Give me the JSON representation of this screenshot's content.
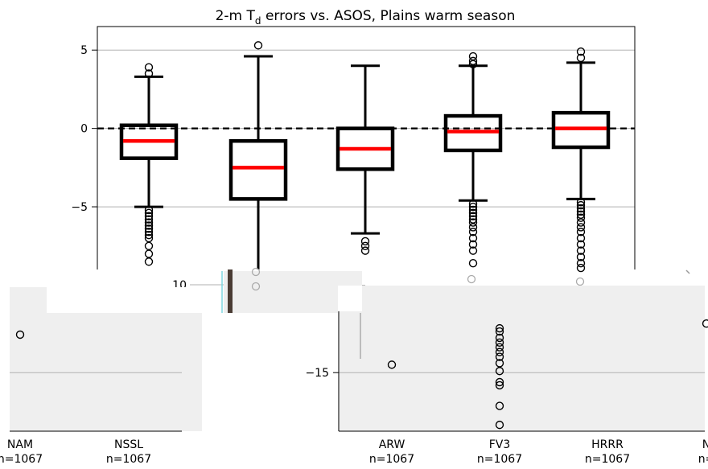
{
  "chart_data": [
    {
      "type": "box",
      "title_main": "2-m T",
      "title_sub": "d",
      "title_rest": " errors vs. ASOS, Plains warm season",
      "xlabel": "",
      "ylabel": "",
      "ylim": [
        -9,
        6.5
      ],
      "y_ticks": [
        {
          "value": 5,
          "label": "5"
        },
        {
          "value": 0,
          "label": "0"
        },
        {
          "value": -5,
          "label": "−5"
        }
      ],
      "reference_line": 0,
      "grid": "horizontal",
      "boxes": [
        {
          "whisker_low": -5.0,
          "q1": -1.9,
          "median": -0.8,
          "q3": 0.2,
          "whisker_high": 3.3,
          "outliers_high": [
            3.9,
            3.5
          ],
          "outliers_low": [
            -5.2,
            -5.4,
            -5.6,
            -5.8,
            -6.0,
            -6.2,
            -6.4,
            -6.6,
            -6.8,
            -7.0,
            -7.5,
            -8.0,
            -8.5
          ]
        },
        {
          "whisker_low": -9.0,
          "q1": -4.5,
          "median": -2.5,
          "q3": -0.8,
          "whisker_high": 4.6,
          "outliers_high": [
            5.3
          ],
          "outliers_low": []
        },
        {
          "whisker_low": -6.7,
          "q1": -2.6,
          "median": -1.3,
          "q3": 0.0,
          "whisker_high": 4.0,
          "outliers_high": [],
          "outliers_low": [
            -7.2,
            -7.5,
            -7.8
          ]
        },
        {
          "whisker_low": -4.6,
          "q1": -1.4,
          "median": -0.2,
          "q3": 0.8,
          "whisker_high": 4.0,
          "outliers_high": [
            4.6,
            4.3,
            4.1
          ],
          "outliers_low": [
            -4.8,
            -5.0,
            -5.2,
            -5.4,
            -5.6,
            -5.8,
            -6.0,
            -6.3,
            -6.6,
            -7.0,
            -7.4,
            -7.8,
            -8.6
          ]
        },
        {
          "whisker_low": -4.5,
          "q1": -1.2,
          "median": 0.0,
          "q3": 1.0,
          "whisker_high": 4.2,
          "outliers_high": [
            4.9,
            4.5
          ],
          "outliers_low": [
            -4.7,
            -4.9,
            -5.1,
            -5.3,
            -5.5,
            -5.7,
            -6.0,
            -6.3,
            -6.6,
            -7.0,
            -7.4,
            -7.8,
            -8.2,
            -8.6,
            -8.9
          ]
        }
      ]
    },
    {
      "type": "box",
      "ylim": [
        -18.7,
        -9.5
      ],
      "y_ticks": [
        {
          "value": -15,
          "label": "−15"
        }
      ],
      "categories": [
        "NAM",
        "NSSL",
        "ARW",
        "FV3",
        "HRRR",
        "N"
      ],
      "category_counts": [
        "n=1067",
        "n=1067",
        "n=1067",
        "n=1067",
        "n=1067",
        "n="
      ],
      "outliers": [
        {
          "category": 0,
          "values": [
            -12.6
          ]
        },
        {
          "category": 2,
          "values": [
            -14.5
          ]
        },
        {
          "category": 3,
          "values": [
            -12.2,
            -12.4,
            -12.8,
            -13.1,
            -13.4,
            -13.7,
            -14.0,
            -14.4,
            -14.9,
            -15.6,
            -15.8,
            -17.1,
            -18.3
          ]
        },
        {
          "category": 5,
          "values": [
            -11.9
          ]
        }
      ]
    }
  ],
  "fragment_tick_label": "10"
}
